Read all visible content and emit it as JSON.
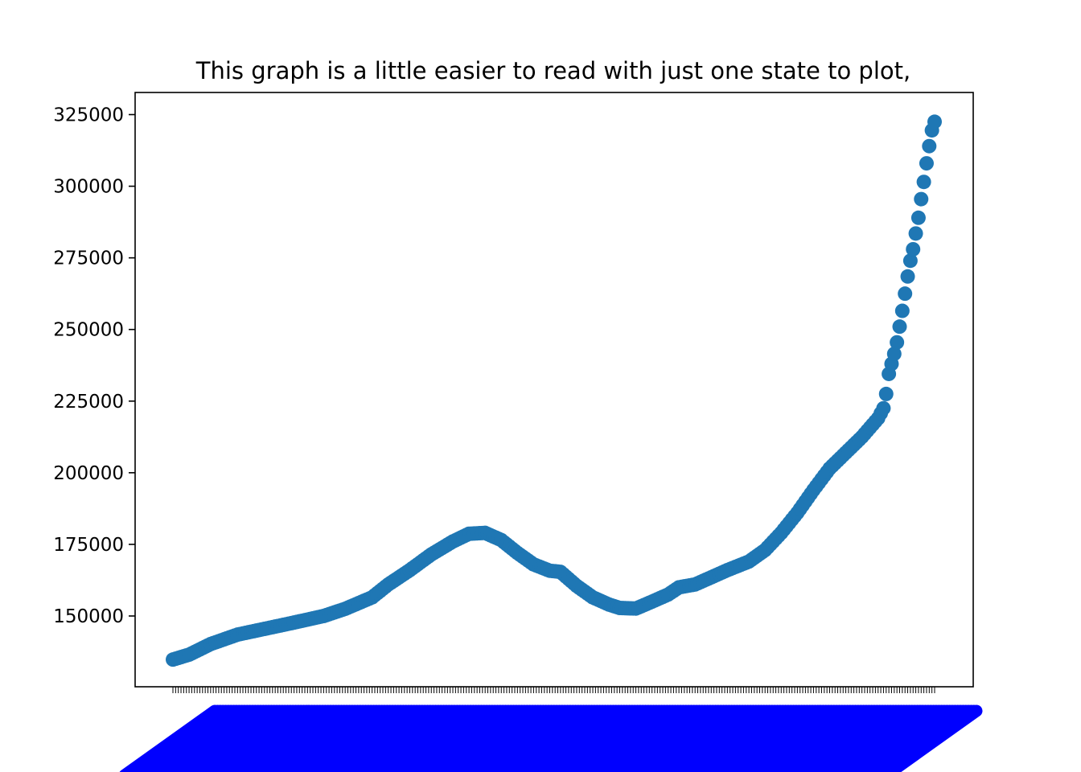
{
  "chart_data": {
    "type": "scatter",
    "title": "This graph is a little easier to read with just one state to plot,",
    "xlabel": "",
    "ylabel": "",
    "ylim": [
      130000,
      328000
    ],
    "yticks": [
      150000,
      175000,
      200000,
      225000,
      250000,
      275000,
      300000,
      325000
    ],
    "ytick_labels": [
      "150000",
      "175000",
      "200000",
      "225000",
      "250000",
      "275000",
      "300000",
      "325000"
    ],
    "grid": false,
    "legend": "none",
    "marker_color": "#1f77b4",
    "xtick_label_color": "#0000ff",
    "x_count": 256,
    "keypoints": [
      [
        0,
        134800
      ],
      [
        6,
        136500
      ],
      [
        14,
        140200
      ],
      [
        24,
        143500
      ],
      [
        34,
        145500
      ],
      [
        44,
        147500
      ],
      [
        56,
        150000
      ],
      [
        64,
        152500
      ],
      [
        74,
        156500
      ],
      [
        80,
        161000
      ],
      [
        88,
        166000
      ],
      [
        96,
        171500
      ],
      [
        104,
        176000
      ],
      [
        110,
        178700
      ],
      [
        116,
        179000
      ],
      [
        122,
        176500
      ],
      [
        128,
        172000
      ],
      [
        134,
        168000
      ],
      [
        140,
        165800
      ],
      [
        144,
        165400
      ],
      [
        150,
        160500
      ],
      [
        156,
        156500
      ],
      [
        162,
        154000
      ],
      [
        166,
        152800
      ],
      [
        172,
        152600
      ],
      [
        178,
        155000
      ],
      [
        184,
        157500
      ],
      [
        188,
        160000
      ],
      [
        194,
        161000
      ],
      [
        200,
        163500
      ],
      [
        206,
        166000
      ],
      [
        214,
        169000
      ],
      [
        220,
        173000
      ],
      [
        226,
        179000
      ],
      [
        232,
        186000
      ],
      [
        238,
        194000
      ],
      [
        244,
        201500
      ],
      [
        250,
        207000
      ],
      [
        256,
        212500
      ],
      [
        262,
        219000
      ],
      [
        264,
        222500
      ]
    ],
    "tail_values": [
      227500,
      234500,
      238000,
      241500,
      245500,
      251000,
      256500,
      262500,
      268500,
      274000,
      278000,
      283500,
      289000,
      295500,
      301500,
      308000,
      314000,
      319500,
      322500
    ]
  }
}
